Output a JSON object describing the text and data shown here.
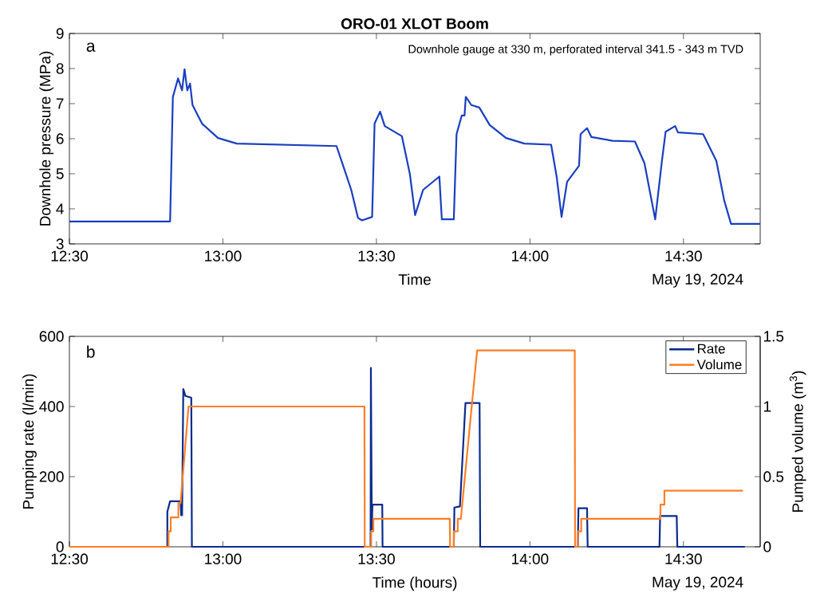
{
  "chart_data": [
    {
      "type": "line",
      "title": "ORO-01 XLOT Boom",
      "xlabel": "Time",
      "ylabel": "Downhole pressure (MPa)",
      "annotations": [
        "a",
        "Downhole gauge at 330 m, perforated interval 341.5 - 343 m TVD",
        "May 19, 2024"
      ],
      "x": [
        12.5,
        12.828,
        12.837,
        12.854,
        12.867,
        12.875,
        12.884,
        12.893,
        12.901,
        12.932,
        12.984,
        13.045,
        13.37,
        13.392,
        13.418,
        13.44,
        13.453,
        13.486,
        13.494,
        13.512,
        13.527,
        13.583,
        13.609,
        13.626,
        13.652,
        13.705,
        13.713,
        13.752,
        13.761,
        13.778,
        13.787,
        13.791,
        13.8,
        13.809,
        13.835,
        13.869,
        13.922,
        13.982,
        14.069,
        14.087,
        14.103,
        14.121,
        14.16,
        14.165,
        14.186,
        14.2,
        14.269,
        14.342,
        14.373,
        14.408,
        14.43,
        14.442,
        14.473,
        14.482,
        14.564,
        14.607,
        14.633,
        14.655,
        14.75
      ],
      "values": [
        3.64,
        3.64,
        7.19,
        7.72,
        7.38,
        7.98,
        7.38,
        7.57,
        6.96,
        6.43,
        6.02,
        5.86,
        5.79,
        5.22,
        4.54,
        3.74,
        3.67,
        3.77,
        6.43,
        6.77,
        6.36,
        6.07,
        4.99,
        3.82,
        4.54,
        4.92,
        3.7,
        3.7,
        6.13,
        6.66,
        6.66,
        7.19,
        7.08,
        6.96,
        6.89,
        6.39,
        6.02,
        5.86,
        5.83,
        4.92,
        3.77,
        4.77,
        5.23,
        6.13,
        6.3,
        6.05,
        5.94,
        5.92,
        5.3,
        3.7,
        5.37,
        6.2,
        6.36,
        6.18,
        6.13,
        5.37,
        4.23,
        3.57,
        3.57
      ],
      "color": "#1a3fbf",
      "xlim": [
        12.5,
        14.75
      ],
      "xticks": [
        {
          "value": 12.5,
          "label": "12:30"
        },
        {
          "value": 13,
          "label": "13:00"
        },
        {
          "value": 13.5,
          "label": "13:30"
        },
        {
          "value": 14,
          "label": "14:00"
        },
        {
          "value": 14.5,
          "label": "14:30"
        }
      ],
      "ylim": [
        3,
        9
      ],
      "yticks": [
        3,
        4,
        5,
        6,
        7,
        8,
        9
      ]
    },
    {
      "type": "line",
      "xlabel": "Time (hours)",
      "ylabel": "Pumping rate (l/min)",
      "y2label": "Pumped volume (m$^{3}$)",
      "annotations": [
        "b",
        "May 19, 2024"
      ],
      "series": [
        {
          "name": "Rate",
          "color": "#0a2b8c",
          "x": [
            12.5,
            12.819,
            12.819,
            12.828,
            12.862,
            12.864,
            12.867,
            12.871,
            12.878,
            12.897,
            12.899,
            13.481,
            13.482,
            13.485,
            13.487,
            13.519,
            13.52,
            13.752,
            13.754,
            13.772,
            13.79,
            13.836,
            13.838,
            14.156,
            14.158,
            14.186,
            14.188,
            14.422,
            14.424,
            14.478,
            14.48,
            14.7
          ],
          "values": [
            0,
            0,
            100,
            130,
            130,
            90,
            90,
            450,
            430,
            425,
            0,
            0,
            510,
            50,
            120,
            120,
            0,
            0,
            112,
            115,
            410,
            410,
            0,
            0,
            110,
            110,
            0,
            0,
            88,
            88,
            0,
            0
          ]
        },
        {
          "name": "Volume",
          "color": "#ff7f27",
          "axis": "y2",
          "x": [
            12.5,
            12.823,
            12.823,
            12.83,
            12.83,
            12.855,
            12.855,
            12.862,
            12.888,
            13.461,
            13.462,
            13.483,
            13.483,
            13.49,
            13.49,
            13.739,
            13.74,
            13.752,
            13.752,
            13.765,
            13.765,
            13.775,
            13.828,
            14.146,
            14.147,
            14.156,
            14.156,
            14.167,
            14.167,
            14.425,
            14.425,
            14.438,
            14.438,
            14.694
          ],
          "values": [
            0,
            0,
            0.11,
            0.11,
            0.21,
            0.21,
            0.31,
            0.31,
            1.0,
            1.0,
            0,
            0,
            0.11,
            0.11,
            0.2,
            0.2,
            0,
            0,
            0.11,
            0.11,
            0.2,
            0.2,
            1.4,
            1.4,
            0,
            0,
            0.11,
            0.11,
            0.2,
            0.2,
            0.3,
            0.3,
            0.4,
            0.4
          ]
        }
      ],
      "xlim": [
        12.5,
        14.75
      ],
      "xticks": [
        {
          "value": 12.5,
          "label": "12:30"
        },
        {
          "value": 13,
          "label": "13:00"
        },
        {
          "value": 13.5,
          "label": "13:30"
        },
        {
          "value": 14,
          "label": "14:00"
        },
        {
          "value": 14.5,
          "label": "14:30"
        }
      ],
      "ylim": [
        0,
        600
      ],
      "yticks": [
        0,
        200,
        400,
        600
      ],
      "y2lim": [
        0,
        1.5
      ],
      "y2ticks": [
        0,
        0.5,
        1,
        1.5
      ],
      "legend": "top right"
    }
  ]
}
